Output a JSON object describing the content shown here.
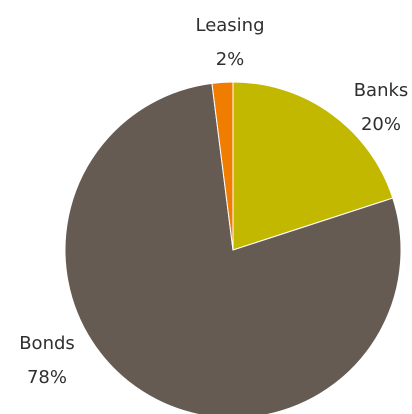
{
  "chart_data": {
    "type": "pie",
    "categories": [
      "Banks",
      "Bonds",
      "Leasing"
    ],
    "values": [
      20,
      78,
      2
    ],
    "data_labels": {
      "names": [
        "Banks",
        "Bonds",
        "Leasing"
      ],
      "percents": [
        "20%",
        "78%",
        "2%"
      ]
    },
    "colors": [
      "#c2b800",
      "#665b52",
      "#f07d00"
    ],
    "start_angle_deg": 0,
    "direction": "clockwise",
    "legend": "none",
    "title": ""
  }
}
